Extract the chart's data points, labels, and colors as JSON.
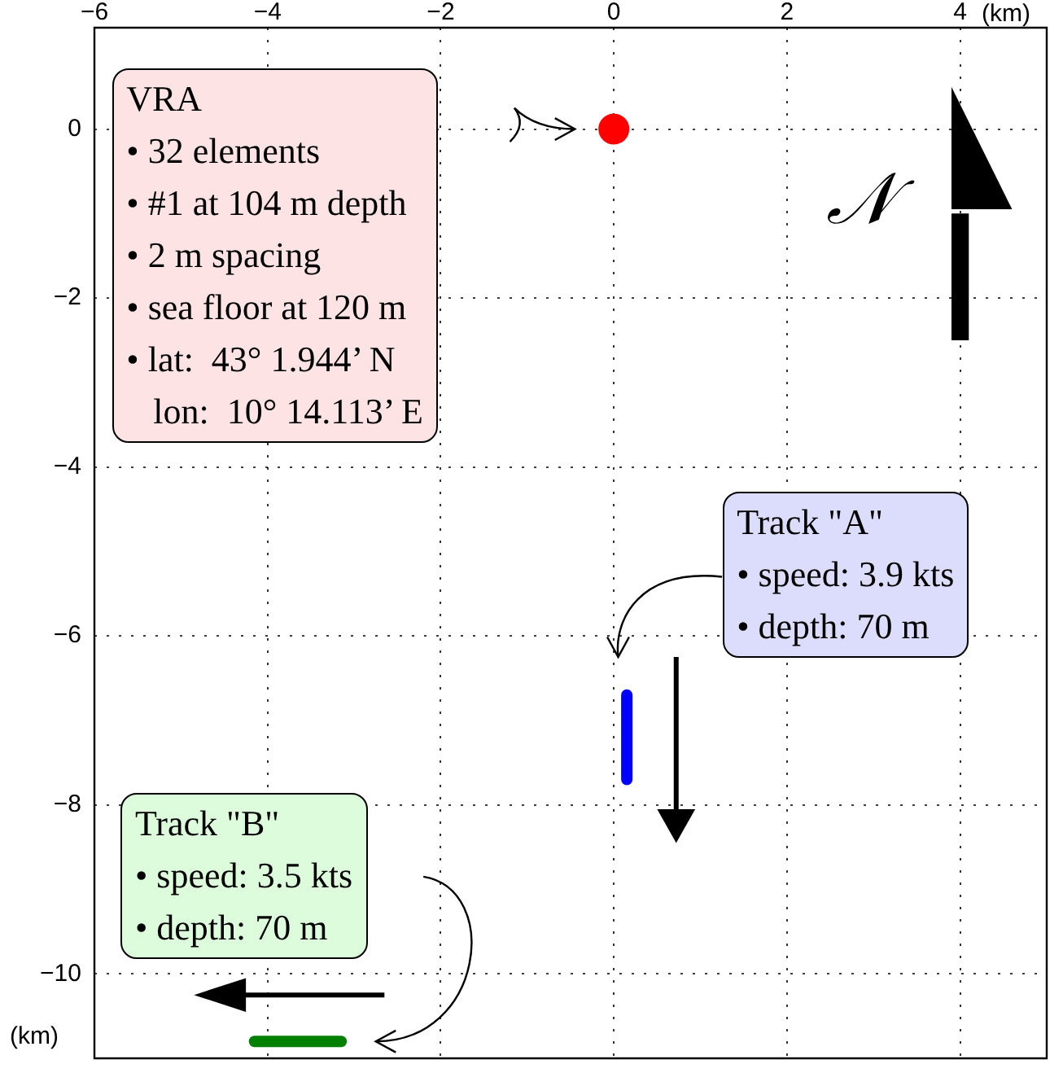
{
  "chart_data": {
    "type": "scatter",
    "xlabel": "(km)",
    "ylabel": "(km)",
    "xlim": [
      -6,
      5
    ],
    "ylim": [
      -11,
      1.2
    ],
    "xticks": [
      -6,
      -4,
      -2,
      0,
      2,
      4
    ],
    "yticks": [
      -10,
      -8,
      -6,
      -4,
      -2,
      0
    ],
    "grid": true,
    "legend": false,
    "series": [
      {
        "type": "scatter",
        "color": "#ff0000",
        "marker": "circle",
        "x": [
          0
        ],
        "values": [
          0
        ]
      },
      {
        "type": "line",
        "color": "#0000ff",
        "marker": "none",
        "x": [
          0.15,
          0.15
        ],
        "values": [
          -6.7,
          -7.7
        ]
      },
      {
        "type": "line",
        "color": "#008000",
        "marker": "none",
        "x": [
          -4.15,
          -3.15
        ],
        "values": [
          -10.8,
          -10.8
        ]
      }
    ],
    "annotations": [
      "VRA\n• 32 elements\n• #1 at 104 m depth\n• 2 m spacing\n• sea floor at 120 m\n• lat:  43° 1.944’ N\n   lon:  10° 14.113’ E",
      "Track \"A\"\n• speed: 3.9 kts\n• depth: 70 m",
      "Track \"B\"\n• speed: 3.5 kts\n• depth: 70 m",
      "𝒩"
    ]
  }
}
